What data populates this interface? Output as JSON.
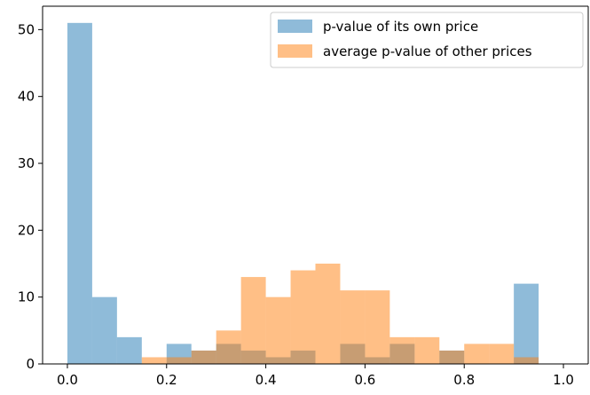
{
  "chart_data": {
    "type": "bar",
    "title": "",
    "xlabel": "",
    "ylabel": "",
    "xlim": [
      -0.05,
      1.05
    ],
    "ylim": [
      0,
      53.5
    ],
    "grid": false,
    "legend_position": "top-right",
    "xticks": [
      0.0,
      0.2,
      0.4,
      0.6,
      0.8,
      1.0
    ],
    "xtick_labels": [
      "0.0",
      "0.2",
      "0.4",
      "0.6",
      "0.8",
      "1.0"
    ],
    "yticks": [
      0,
      10,
      20,
      30,
      40,
      50
    ],
    "ytick_labels": [
      "0",
      "10",
      "20",
      "30",
      "40",
      "50"
    ],
    "bin_edges": [
      0.0,
      0.05,
      0.1,
      0.15,
      0.2,
      0.25,
      0.3,
      0.35,
      0.4,
      0.45,
      0.5,
      0.55,
      0.6,
      0.65,
      0.7,
      0.75,
      0.8,
      0.85,
      0.9,
      0.95,
      1.0
    ],
    "series": [
      {
        "name": "p-value of its own price",
        "color": "#1f77b4",
        "alpha": 0.5,
        "values": [
          51,
          10,
          4,
          0,
          3,
          2,
          3,
          2,
          1,
          2,
          0,
          3,
          1,
          3,
          0,
          2,
          0,
          0,
          12,
          0
        ]
      },
      {
        "name": "average p-value of other prices",
        "color": "#ff7f0e",
        "alpha": 0.5,
        "values": [
          0,
          0,
          0,
          1,
          1,
          2,
          5,
          13,
          10,
          14,
          15,
          11,
          11,
          4,
          4,
          2,
          3,
          3,
          1,
          0
        ]
      }
    ]
  }
}
